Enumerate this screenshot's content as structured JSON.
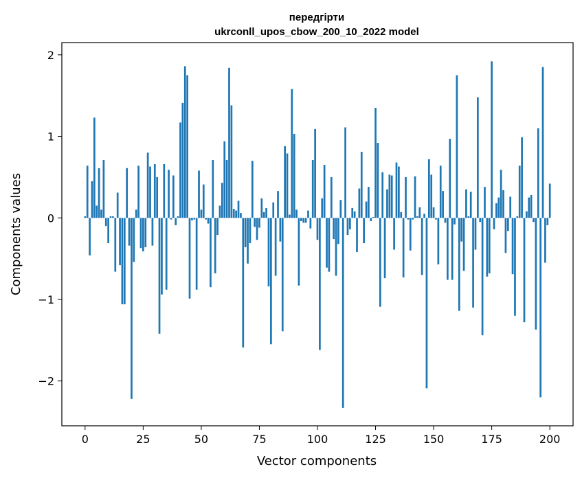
{
  "chart_data": {
    "type": "bar",
    "title_lines": [
      "передгірти",
      "ukrconll_upos_cbow_200_10_2022 model"
    ],
    "xlabel": "Vector components",
    "ylabel": "Components values",
    "xlim": [
      -10,
      210
    ],
    "ylim": [
      -2.55,
      2.15
    ],
    "xticks": [
      0,
      25,
      50,
      75,
      100,
      125,
      150,
      175,
      200
    ],
    "yticks": [
      -2,
      -1,
      0,
      1,
      2
    ],
    "ytick_labels": [
      "−2",
      "−1",
      "0",
      "1",
      "2"
    ],
    "bar_color": "#1f77b4",
    "grid": false,
    "values": [
      0.02,
      0.64,
      -0.46,
      0.45,
      1.23,
      0.15,
      0.61,
      0.1,
      0.71,
      -0.1,
      -0.31,
      0.02,
      0.02,
      -0.66,
      0.31,
      -0.58,
      -1.06,
      -1.06,
      0.61,
      -0.34,
      -2.22,
      -0.54,
      0.1,
      0.64,
      -0.37,
      -0.41,
      -0.36,
      0.8,
      0.63,
      -0.34,
      0.66,
      0.5,
      -1.42,
      -0.94,
      0.66,
      -0.88,
      0.59,
      -0.02,
      0.52,
      -0.09,
      0.02,
      1.17,
      1.41,
      1.86,
      1.75,
      -0.99,
      -0.03,
      -0.02,
      -0.88,
      0.58,
      0.1,
      0.41,
      -0.02,
      -0.07,
      -0.85,
      0.71,
      -0.68,
      -0.21,
      0.15,
      0.43,
      0.94,
      0.71,
      1.84,
      1.38,
      0.11,
      0.09,
      0.21,
      0.06,
      -1.59,
      -0.36,
      -0.56,
      -0.31,
      0.7,
      -0.11,
      -0.27,
      -0.12,
      0.24,
      0.07,
      0.12,
      -0.84,
      -1.55,
      0.19,
      -0.71,
      0.33,
      -0.29,
      -1.39,
      0.88,
      0.79,
      0.04,
      1.58,
      1.03,
      0.1,
      -0.83,
      -0.04,
      -0.06,
      -0.06,
      0.09,
      -0.13,
      0.71,
      1.09,
      -0.27,
      -1.62,
      0.24,
      0.65,
      -0.61,
      -0.66,
      0.5,
      -0.26,
      -0.71,
      -0.32,
      0.22,
      -2.33,
      1.11,
      -0.21,
      -0.14,
      0.12,
      0.08,
      -0.42,
      0.36,
      0.81,
      -0.31,
      0.2,
      0.38,
      -0.04,
      0.01,
      1.35,
      0.92,
      -1.09,
      0.56,
      -0.74,
      0.35,
      0.53,
      0.52,
      -0.39,
      0.68,
      0.63,
      0.07,
      -0.73,
      0.5,
      -0.02,
      -0.4,
      -0.02,
      0.51,
      0.02,
      0.13,
      -0.7,
      0.05,
      -2.09,
      0.72,
      0.53,
      0.13,
      -0.02,
      -0.57,
      0.64,
      0.33,
      -0.06,
      -0.76,
      0.97,
      -0.76,
      -0.08,
      1.75,
      -1.14,
      -0.29,
      -0.65,
      0.35,
      0.02,
      0.32,
      -1.1,
      -0.39,
      1.48,
      -0.05,
      -1.44,
      0.38,
      -0.72,
      -0.68,
      1.92,
      -0.14,
      0.18,
      0.25,
      0.59,
      0.34,
      -0.43,
      -0.16,
      0.26,
      -0.69,
      -1.2,
      0.02,
      0.64,
      0.99,
      -1.28,
      0.08,
      0.25,
      0.28,
      -0.05,
      -1.37,
      1.1,
      -2.2,
      1.85,
      -0.55,
      -0.09,
      0.42
    ]
  }
}
